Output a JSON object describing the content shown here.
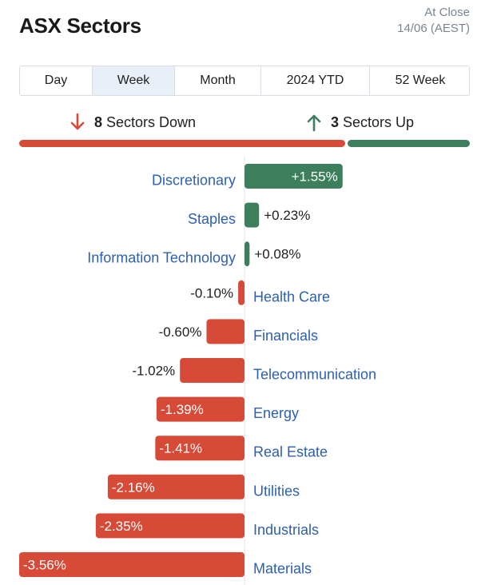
{
  "header": {
    "title": "ASX Sectors",
    "close_label": "At Close",
    "close_date": "14/06 (AEST)"
  },
  "tabs": [
    {
      "label": "Day",
      "active": false
    },
    {
      "label": "Week",
      "active": true
    },
    {
      "label": "Month",
      "active": false
    },
    {
      "label": "2024 YTD",
      "active": false
    },
    {
      "label": "52 Week",
      "active": false
    }
  ],
  "summary": {
    "down_count": "8",
    "down_label": "Sectors Down",
    "up_count": "3",
    "up_label": "Sectors Up",
    "down_color": "#d84a38",
    "up_color": "#3d7f5d"
  },
  "chart_data": {
    "type": "bar",
    "orientation": "horizontal",
    "unit": "%",
    "categories": [
      "Discretionary",
      "Staples",
      "Information Technology",
      "Health Care",
      "Financials",
      "Telecommunication",
      "Energy",
      "Real Estate",
      "Utilities",
      "Industrials",
      "Materials"
    ],
    "values": [
      1.55,
      0.23,
      0.08,
      -0.1,
      -0.6,
      -1.02,
      -1.39,
      -1.41,
      -2.16,
      -2.35,
      -3.56
    ],
    "labels": [
      "+1.55%",
      "+0.23%",
      "+0.08%",
      "-0.10%",
      "-0.60%",
      "-1.02%",
      "-1.39%",
      "-1.41%",
      "-2.16%",
      "-2.35%",
      "-3.56%"
    ],
    "positive_color": "#3d7f5d",
    "negative_color": "#d84a38",
    "label_color": "#2c5fb3"
  }
}
